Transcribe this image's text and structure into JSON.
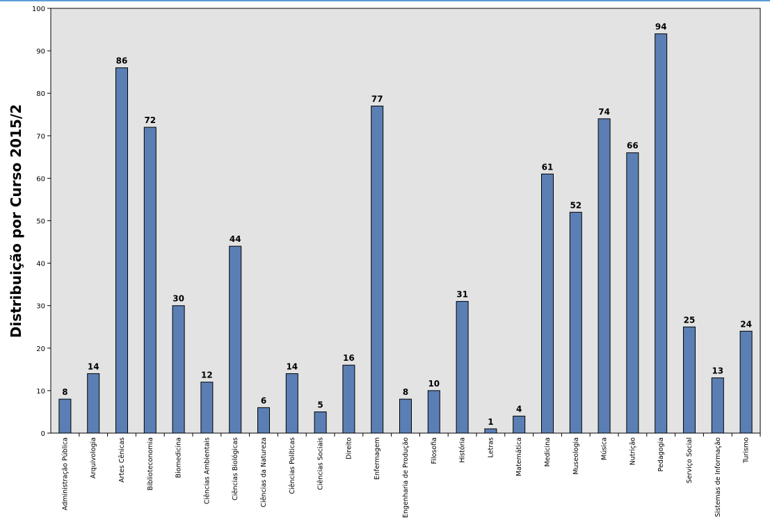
{
  "chart_data": {
    "type": "bar",
    "title": "",
    "xlabel": "",
    "ylabel": "Distribuição por Curso 2015/2",
    "ylim": [
      0,
      100
    ],
    "yticks": [
      0,
      10,
      20,
      30,
      40,
      50,
      60,
      70,
      80,
      90,
      100
    ],
    "grid": false,
    "legend": "none",
    "bar_color": "#5b7fb4",
    "plot_background": "#e3e3e3",
    "categories": [
      "Administração Pública",
      "Arquivologia",
      "Artes Cênicas",
      "Biblioteconomia",
      "Biomedicina",
      "Ciências Ambientais",
      "Ciências Biológicas",
      "Ciências da Natureza",
      "Ciências Políticas",
      "Ciências Sociais",
      "Direito",
      "Enfermagem",
      "Engenharia de Produção",
      "Filosofia",
      "História",
      "Letras",
      "Matemática",
      "Medicina",
      "Museologia",
      "Música",
      "Nutrição",
      "Pedagogia",
      "Serviço Social",
      "Sistemas de Informação",
      "Turismo"
    ],
    "values": [
      8,
      14,
      86,
      72,
      30,
      12,
      44,
      6,
      14,
      5,
      16,
      77,
      8,
      10,
      31,
      1,
      4,
      61,
      52,
      74,
      66,
      94,
      25,
      13,
      24
    ]
  }
}
